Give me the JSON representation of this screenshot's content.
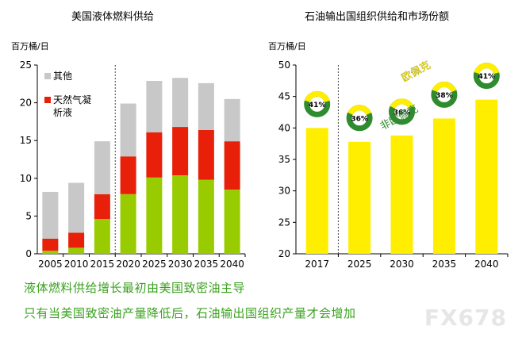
{
  "chart_data": [
    {
      "type": "bar",
      "title": "美国液体燃料供给",
      "ylabel": "百万桶/日",
      "categories": [
        "2005",
        "2010",
        "2015",
        "2020",
        "2025",
        "2030",
        "2035",
        "2040"
      ],
      "ylim": [
        0,
        25
      ],
      "yticks": [
        0,
        5,
        10,
        15,
        20,
        25
      ],
      "stacked": true,
      "series": [
        {
          "name": "",
          "color": "#99cc00",
          "values": [
            0.4,
            0.8,
            4.6,
            7.9,
            10.1,
            10.4,
            9.8,
            8.5
          ]
        },
        {
          "name": "天然气凝析液",
          "color": "#e8200a",
          "values": [
            1.6,
            2.0,
            3.3,
            5.0,
            6.0,
            6.4,
            6.6,
            6.4
          ]
        },
        {
          "name": "其他",
          "color": "#c8c8c8",
          "values": [
            6.2,
            6.6,
            7.0,
            7.0,
            6.8,
            6.5,
            6.2,
            5.6
          ]
        }
      ],
      "divider_after_category": "2015",
      "legend_placement": "top-left"
    },
    {
      "type": "bar",
      "title": "石油输出国组织供给和市场份额",
      "ylabel": "百万桶/日",
      "categories": [
        "2017",
        "2025",
        "2030",
        "2035",
        "2040"
      ],
      "ylim": [
        20,
        50
      ],
      "yticks": [
        20,
        25,
        30,
        35,
        40,
        45,
        50
      ],
      "values": [
        40.0,
        37.8,
        38.8,
        41.5,
        44.5
      ],
      "bar_color": "#ffee00",
      "divider_after_category": "2017",
      "market_share": [
        {
          "category": "2017",
          "label": "41%",
          "ring_color": "#ffee00"
        },
        {
          "category": "2025",
          "label": "36%",
          "ring_color": "#ffee00"
        },
        {
          "category": "2030",
          "label": "36%",
          "ring_color": "#ffee00"
        },
        {
          "category": "2035",
          "label": "38%",
          "ring_color": "#ffee00"
        },
        {
          "category": "2040",
          "label": "41%",
          "ring_color": "#ffee00"
        }
      ],
      "annotations": [
        "欧佩克",
        "非欧佩克"
      ]
    }
  ],
  "captions": {
    "line1": "液体燃料供给增长最初由美国致密油主导",
    "line2": "只有当美国致密油产量降低后，石油输出国组织产量才会增加"
  },
  "watermark": "FX678"
}
